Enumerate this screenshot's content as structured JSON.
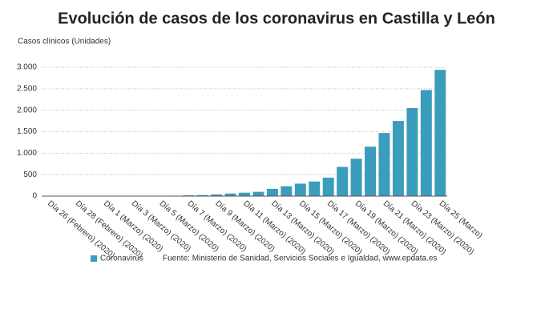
{
  "chart_data": {
    "type": "bar",
    "title": "Evolución de casos de los coronavirus en Castilla y León",
    "y_label": "Casos clínicos (Unidades)",
    "source": "Fuente: Ministerio de Sanidad, Servicios Sociales e Igualdad, www.epdata.es",
    "categories": [
      "Día 26 (Febrero) (2020)",
      null,
      "Día 28 (Febrero) (2020)",
      null,
      "Día 1 (Marzo) (2020)",
      null,
      "Día 3 (Marzo) (2020)",
      null,
      "Día 5 (Marzo) (2020)",
      null,
      "Día 7 (Marzo) (2020)",
      null,
      "Día 9 (Marzo) (2020)",
      null,
      "Día 11 (Marzo) (2020)",
      null,
      "Día 13 (Marzo) (2020)",
      null,
      "Día 15 (Marzo) (2020)",
      null,
      "Día 17 (Marzo) (2020)",
      null,
      "Día 19 (Marzo) (2020)",
      null,
      "Día 21 (Marzo) (2020)",
      null,
      "Día 23 (Marzo) (2020)",
      null,
      "Día 25 (Marzo)"
    ],
    "series": [
      {
        "name": "Coronavirus",
        "color": "#3a9dbb",
        "values": [
          1,
          1,
          2,
          2,
          2,
          3,
          3,
          5,
          10,
          10,
          20,
          25,
          40,
          60,
          80,
          100,
          170,
          230,
          290,
          340,
          430,
          680,
          870,
          1150,
          1470,
          1750,
          2050,
          2470,
          2940
        ]
      }
    ],
    "ylim": [
      0,
      3000
    ],
    "yticks": [
      0,
      500,
      {
        "value": 1000,
        "label": "1.000"
      },
      {
        "value": 1500,
        "label": "1.500"
      },
      {
        "value": 2000,
        "label": "2.000"
      },
      {
        "value": 2500,
        "label": "2.500"
      },
      {
        "value": 3000,
        "label": "3.000"
      }
    ],
    "grid": true
  }
}
